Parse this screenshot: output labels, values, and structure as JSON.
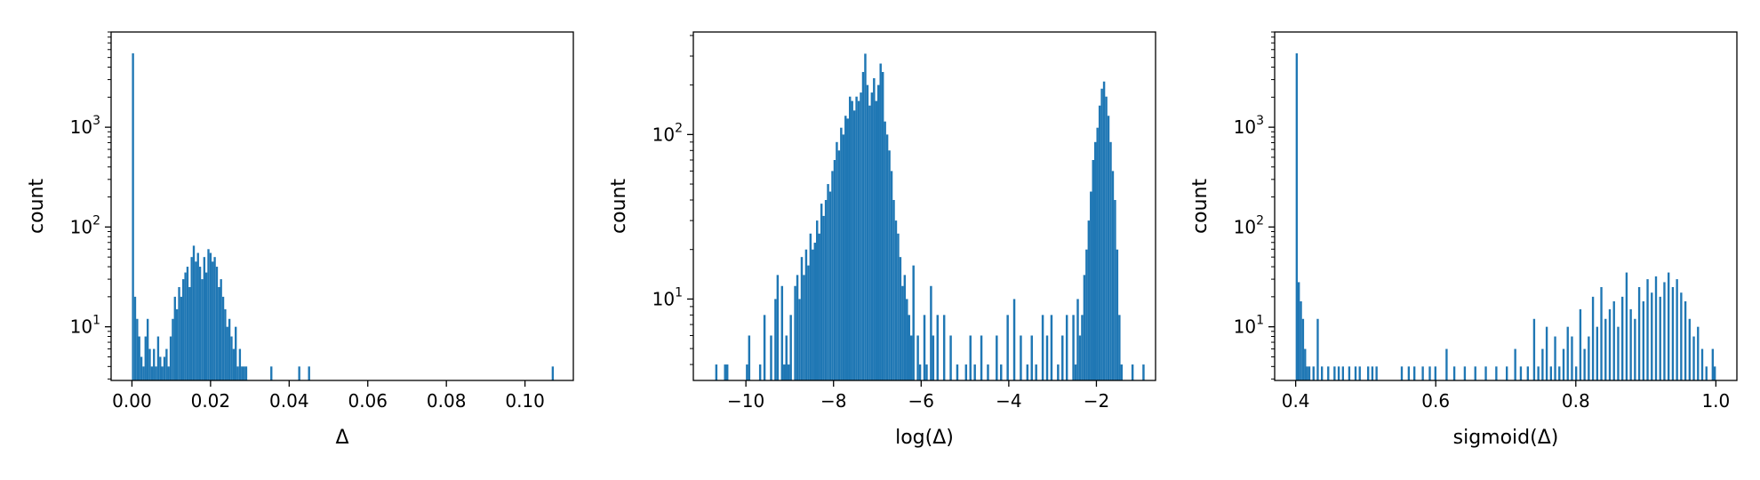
{
  "colors": {
    "bar": "#1f77b4",
    "axis": "#000000",
    "background": "#ffffff"
  },
  "chart_data": [
    {
      "type": "bar",
      "xlabel": "Δ",
      "ylabel": "count",
      "yscale": "log",
      "grid": false,
      "xlim": [
        -0.0053,
        0.1123
      ],
      "ylim": [
        2.9,
        9000
      ],
      "xticks": [
        {
          "value": 0.0,
          "label": "0.00"
        },
        {
          "value": 0.02,
          "label": "0.02"
        },
        {
          "value": 0.04,
          "label": "0.04"
        },
        {
          "value": 0.06,
          "label": "0.06"
        },
        {
          "value": 0.08,
          "label": "0.08"
        },
        {
          "value": 0.1,
          "label": "0.10"
        }
      ],
      "yticks": [
        {
          "value": 10,
          "base": "10",
          "exp": "1"
        },
        {
          "value": 100,
          "base": "10",
          "exp": "2"
        },
        {
          "value": 1000,
          "base": "10",
          "exp": "3"
        }
      ],
      "bin_width": 0.000534,
      "bins": [
        [
          0.0,
          5500
        ],
        [
          0.000534,
          20
        ],
        [
          0.00107,
          12
        ],
        [
          0.0016,
          8
        ],
        [
          0.00214,
          5
        ],
        [
          0.00267,
          4
        ],
        [
          0.0032,
          8
        ],
        [
          0.00374,
          12
        ],
        [
          0.00427,
          6
        ],
        [
          0.0048,
          4
        ],
        [
          0.00534,
          6
        ],
        [
          0.00587,
          4
        ],
        [
          0.0064,
          8
        ],
        [
          0.00694,
          5
        ],
        [
          0.00747,
          4
        ],
        [
          0.008,
          5
        ],
        [
          0.00854,
          6
        ],
        [
          0.00907,
          4
        ],
        [
          0.0096,
          8
        ],
        [
          0.01014,
          12
        ],
        [
          0.01067,
          20
        ],
        [
          0.0112,
          15
        ],
        [
          0.01174,
          25
        ],
        [
          0.01227,
          20
        ],
        [
          0.0128,
          30
        ],
        [
          0.01334,
          35
        ],
        [
          0.01387,
          40
        ],
        [
          0.0144,
          25
        ],
        [
          0.01494,
          50
        ],
        [
          0.01547,
          65
        ],
        [
          0.016,
          45
        ],
        [
          0.01654,
          55
        ],
        [
          0.01707,
          40
        ],
        [
          0.0176,
          30
        ],
        [
          0.01814,
          50
        ],
        [
          0.01867,
          35
        ],
        [
          0.0192,
          60
        ],
        [
          0.01974,
          55
        ],
        [
          0.02027,
          45
        ],
        [
          0.0208,
          50
        ],
        [
          0.02134,
          40
        ],
        [
          0.02187,
          25
        ],
        [
          0.0224,
          30
        ],
        [
          0.02294,
          20
        ],
        [
          0.02347,
          15
        ],
        [
          0.024,
          10
        ],
        [
          0.02454,
          12
        ],
        [
          0.02507,
          8
        ],
        [
          0.0256,
          6
        ],
        [
          0.02614,
          10
        ],
        [
          0.02667,
          4
        ],
        [
          0.0272,
          6
        ],
        [
          0.02774,
          4
        ],
        [
          0.02827,
          4
        ],
        [
          0.0288,
          4
        ],
        [
          0.0352,
          4
        ],
        [
          0.0423,
          4
        ],
        [
          0.0448,
          4
        ],
        [
          0.1068,
          4
        ]
      ]
    },
    {
      "type": "bar",
      "xlabel": "log(Δ)",
      "ylabel": "count",
      "yscale": "log",
      "grid": false,
      "xlim": [
        -11.2,
        -0.65
      ],
      "ylim": [
        3.2,
        420
      ],
      "xticks": [
        {
          "value": -10,
          "label": "−10"
        },
        {
          "value": -8,
          "label": "−8"
        },
        {
          "value": -6,
          "label": "−6"
        },
        {
          "value": -4,
          "label": "−4"
        },
        {
          "value": -2,
          "label": "−2"
        }
      ],
      "yticks": [
        {
          "value": 10,
          "base": "10",
          "exp": "1"
        },
        {
          "value": 100,
          "base": "10",
          "exp": "2"
        }
      ],
      "bin_width": 0.05,
      "bins": [
        [
          -10.7,
          4
        ],
        [
          -10.5,
          4
        ],
        [
          -10.45,
          4
        ],
        [
          -10.0,
          4
        ],
        [
          -9.95,
          6
        ],
        [
          -9.7,
          4
        ],
        [
          -9.6,
          8
        ],
        [
          -9.45,
          6
        ],
        [
          -9.35,
          10
        ],
        [
          -9.3,
          14
        ],
        [
          -9.2,
          12
        ],
        [
          -9.15,
          4
        ],
        [
          -9.1,
          6
        ],
        [
          -9.05,
          4
        ],
        [
          -9.0,
          8
        ],
        [
          -8.9,
          12
        ],
        [
          -8.85,
          14
        ],
        [
          -8.8,
          10
        ],
        [
          -8.75,
          18
        ],
        [
          -8.7,
          14
        ],
        [
          -8.65,
          20
        ],
        [
          -8.6,
          16
        ],
        [
          -8.55,
          25
        ],
        [
          -8.5,
          20
        ],
        [
          -8.45,
          22
        ],
        [
          -8.4,
          30
        ],
        [
          -8.35,
          25
        ],
        [
          -8.3,
          38
        ],
        [
          -8.25,
          32
        ],
        [
          -8.2,
          40
        ],
        [
          -8.15,
          50
        ],
        [
          -8.1,
          45
        ],
        [
          -8.05,
          60
        ],
        [
          -8.0,
          70
        ],
        [
          -7.95,
          90
        ],
        [
          -7.9,
          80
        ],
        [
          -7.85,
          110
        ],
        [
          -7.8,
          100
        ],
        [
          -7.75,
          130
        ],
        [
          -7.7,
          125
        ],
        [
          -7.65,
          170
        ],
        [
          -7.6,
          160
        ],
        [
          -7.55,
          140
        ],
        [
          -7.5,
          170
        ],
        [
          -7.45,
          160
        ],
        [
          -7.4,
          180
        ],
        [
          -7.35,
          240
        ],
        [
          -7.3,
          310
        ],
        [
          -7.25,
          200
        ],
        [
          -7.2,
          150
        ],
        [
          -7.15,
          180
        ],
        [
          -7.1,
          220
        ],
        [
          -7.05,
          160
        ],
        [
          -7.0,
          200
        ],
        [
          -6.95,
          270
        ],
        [
          -6.9,
          240
        ],
        [
          -6.85,
          120
        ],
        [
          -6.8,
          100
        ],
        [
          -6.75,
          80
        ],
        [
          -6.7,
          60
        ],
        [
          -6.65,
          40
        ],
        [
          -6.6,
          30
        ],
        [
          -6.55,
          25
        ],
        [
          -6.5,
          18
        ],
        [
          -6.45,
          12
        ],
        [
          -6.4,
          14
        ],
        [
          -6.35,
          10
        ],
        [
          -6.3,
          8
        ],
        [
          -6.25,
          6
        ],
        [
          -6.2,
          16
        ],
        [
          -6.1,
          6
        ],
        [
          -6.05,
          4
        ],
        [
          -5.95,
          8
        ],
        [
          -5.9,
          4
        ],
        [
          -5.8,
          12
        ],
        [
          -5.75,
          6
        ],
        [
          -5.65,
          8
        ],
        [
          -5.5,
          8
        ],
        [
          -5.35,
          6
        ],
        [
          -5.2,
          4
        ],
        [
          -5.0,
          4
        ],
        [
          -4.9,
          6
        ],
        [
          -4.8,
          4
        ],
        [
          -4.65,
          6
        ],
        [
          -4.5,
          4
        ],
        [
          -4.3,
          6
        ],
        [
          -4.2,
          4
        ],
        [
          -4.05,
          8
        ],
        [
          -3.9,
          10
        ],
        [
          -3.75,
          6
        ],
        [
          -3.6,
          4
        ],
        [
          -3.5,
          6
        ],
        [
          -3.4,
          4
        ],
        [
          -3.25,
          8
        ],
        [
          -3.15,
          6
        ],
        [
          -3.05,
          8
        ],
        [
          -2.9,
          4
        ],
        [
          -2.8,
          6
        ],
        [
          -2.7,
          8
        ],
        [
          -2.55,
          8
        ],
        [
          -2.5,
          4
        ],
        [
          -2.45,
          10
        ],
        [
          -2.4,
          6
        ],
        [
          -2.35,
          8
        ],
        [
          -2.3,
          14
        ],
        [
          -2.25,
          20
        ],
        [
          -2.2,
          30
        ],
        [
          -2.15,
          45
        ],
        [
          -2.1,
          70
        ],
        [
          -2.05,
          90
        ],
        [
          -2.0,
          110
        ],
        [
          -1.95,
          150
        ],
        [
          -1.9,
          190
        ],
        [
          -1.85,
          210
        ],
        [
          -1.8,
          170
        ],
        [
          -1.75,
          130
        ],
        [
          -1.7,
          90
        ],
        [
          -1.65,
          60
        ],
        [
          -1.6,
          40
        ],
        [
          -1.55,
          20
        ],
        [
          -1.5,
          8
        ],
        [
          -1.45,
          4
        ],
        [
          -1.2,
          4
        ],
        [
          -0.95,
          4
        ]
      ]
    },
    {
      "type": "bar",
      "xlabel": "sigmoid(Δ)",
      "ylabel": "count",
      "yscale": "log",
      "grid": false,
      "xlim": [
        0.37,
        1.03
      ],
      "ylim": [
        2.9,
        9000
      ],
      "xticks": [
        {
          "value": 0.4,
          "label": "0.4"
        },
        {
          "value": 0.6,
          "label": "0.6"
        },
        {
          "value": 0.8,
          "label": "0.8"
        },
        {
          "value": 1.0,
          "label": "1.0"
        }
      ],
      "yticks": [
        {
          "value": 10,
          "base": "10",
          "exp": "1"
        },
        {
          "value": 100,
          "base": "10",
          "exp": "2"
        },
        {
          "value": 1000,
          "base": "10",
          "exp": "3"
        }
      ],
      "bin_width": 0.003,
      "bins": [
        [
          0.4,
          5500
        ],
        [
          0.403,
          28
        ],
        [
          0.406,
          18
        ],
        [
          0.409,
          12
        ],
        [
          0.412,
          6
        ],
        [
          0.415,
          4
        ],
        [
          0.418,
          4
        ],
        [
          0.424,
          4
        ],
        [
          0.43,
          12
        ],
        [
          0.436,
          4
        ],
        [
          0.445,
          4
        ],
        [
          0.454,
          4
        ],
        [
          0.46,
          4
        ],
        [
          0.466,
          4
        ],
        [
          0.475,
          4
        ],
        [
          0.484,
          4
        ],
        [
          0.49,
          4
        ],
        [
          0.502,
          4
        ],
        [
          0.508,
          4
        ],
        [
          0.514,
          4
        ],
        [
          0.55,
          4
        ],
        [
          0.56,
          4
        ],
        [
          0.568,
          4
        ],
        [
          0.58,
          4
        ],
        [
          0.59,
          4
        ],
        [
          0.598,
          4
        ],
        [
          0.614,
          6
        ],
        [
          0.625,
          4
        ],
        [
          0.64,
          4
        ],
        [
          0.655,
          4
        ],
        [
          0.67,
          4
        ],
        [
          0.685,
          4
        ],
        [
          0.7,
          4
        ],
        [
          0.712,
          6
        ],
        [
          0.72,
          4
        ],
        [
          0.73,
          4
        ],
        [
          0.739,
          12
        ],
        [
          0.745,
          4
        ],
        [
          0.751,
          6
        ],
        [
          0.757,
          10
        ],
        [
          0.763,
          4
        ],
        [
          0.769,
          8
        ],
        [
          0.775,
          4
        ],
        [
          0.781,
          6
        ],
        [
          0.787,
          10
        ],
        [
          0.793,
          8
        ],
        [
          0.799,
          4
        ],
        [
          0.805,
          15
        ],
        [
          0.811,
          6
        ],
        [
          0.817,
          8
        ],
        [
          0.823,
          20
        ],
        [
          0.829,
          10
        ],
        [
          0.835,
          25
        ],
        [
          0.841,
          12
        ],
        [
          0.847,
          15
        ],
        [
          0.853,
          18
        ],
        [
          0.859,
          10
        ],
        [
          0.865,
          20
        ],
        [
          0.871,
          35
        ],
        [
          0.877,
          15
        ],
        [
          0.883,
          12
        ],
        [
          0.889,
          25
        ],
        [
          0.895,
          18
        ],
        [
          0.901,
          30
        ],
        [
          0.907,
          22
        ],
        [
          0.913,
          32
        ],
        [
          0.919,
          20
        ],
        [
          0.925,
          28
        ],
        [
          0.931,
          35
        ],
        [
          0.937,
          25
        ],
        [
          0.943,
          30
        ],
        [
          0.949,
          22
        ],
        [
          0.955,
          18
        ],
        [
          0.961,
          12
        ],
        [
          0.967,
          8
        ],
        [
          0.973,
          10
        ],
        [
          0.979,
          6
        ],
        [
          0.985,
          4
        ],
        [
          0.994,
          6
        ],
        [
          0.997,
          4
        ]
      ]
    }
  ]
}
